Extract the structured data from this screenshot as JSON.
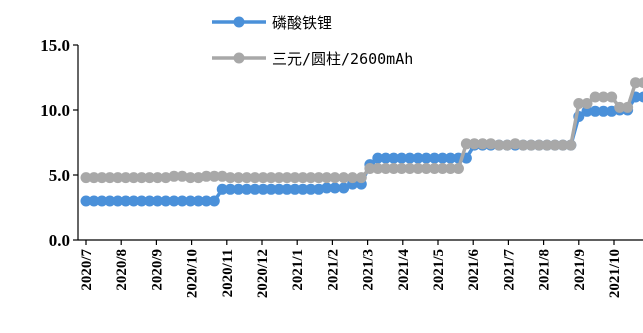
{
  "chart_data": {
    "type": "line",
    "title": "",
    "xlabel": "",
    "ylabel": "",
    "ylim": [
      0,
      15
    ],
    "yticks": [
      "0.0",
      "5.0",
      "10.0",
      "15.0"
    ],
    "xticks": [
      "2020/7",
      "2020/8",
      "2020/9",
      "2020/10",
      "2020/11",
      "2020/12",
      "2021/1",
      "2021/2",
      "2021/3",
      "2021/4",
      "2021/5",
      "2021/6",
      "2021/7",
      "2021/8",
      "2021/9",
      "2021/10"
    ],
    "legend_position": "top",
    "grid": false,
    "series": [
      {
        "name": "磷酸铁锂",
        "color": "#4a90d9",
        "x": [
          "2020-07-01",
          "2020-07-08",
          "2020-07-15",
          "2020-07-22",
          "2020-07-29",
          "2020-08-05",
          "2020-08-12",
          "2020-08-19",
          "2020-08-26",
          "2020-09-02",
          "2020-09-09",
          "2020-09-16",
          "2020-09-23",
          "2020-09-30",
          "2020-10-07",
          "2020-10-14",
          "2020-10-21",
          "2020-10-28",
          "2020-11-04",
          "2020-11-11",
          "2020-11-18",
          "2020-11-25",
          "2020-12-02",
          "2020-12-09",
          "2020-12-16",
          "2020-12-23",
          "2020-12-30",
          "2021-01-06",
          "2021-01-13",
          "2021-01-20",
          "2021-01-27",
          "2021-02-03",
          "2021-02-10",
          "2021-02-17",
          "2021-02-24",
          "2021-03-03",
          "2021-03-10",
          "2021-03-17",
          "2021-03-24",
          "2021-03-31",
          "2021-04-07",
          "2021-04-14",
          "2021-04-21",
          "2021-04-28",
          "2021-05-05",
          "2021-05-12",
          "2021-05-19",
          "2021-05-26",
          "2021-06-02",
          "2021-06-09",
          "2021-06-16",
          "2021-06-23",
          "2021-06-30",
          "2021-07-07",
          "2021-07-14",
          "2021-07-21",
          "2021-07-28",
          "2021-08-04",
          "2021-08-11",
          "2021-08-18",
          "2021-08-25",
          "2021-09-01",
          "2021-09-08",
          "2021-09-15",
          "2021-09-22",
          "2021-09-29",
          "2021-10-06",
          "2021-10-13",
          "2021-10-20",
          "2021-10-27"
        ],
        "values": [
          3.0,
          3.0,
          3.0,
          3.0,
          3.0,
          3.0,
          3.0,
          3.0,
          3.0,
          3.0,
          3.0,
          3.0,
          3.0,
          3.0,
          3.0,
          3.0,
          3.0,
          3.9,
          3.9,
          3.9,
          3.9,
          3.9,
          3.9,
          3.9,
          3.9,
          3.9,
          3.9,
          3.9,
          3.9,
          3.9,
          4.0,
          4.0,
          4.0,
          4.3,
          4.3,
          5.8,
          6.3,
          6.3,
          6.3,
          6.3,
          6.3,
          6.3,
          6.3,
          6.3,
          6.3,
          6.3,
          6.3,
          6.3,
          7.3,
          7.3,
          7.3,
          7.3,
          7.3,
          7.3,
          7.3,
          7.3,
          7.3,
          7.3,
          7.3,
          7.3,
          7.3,
          9.5,
          9.9,
          9.9,
          9.9,
          9.9,
          10.0,
          10.0,
          11.0,
          11.0
        ]
      },
      {
        "name": "三元/圆柱/2600mAh",
        "color": "#a8a8a8",
        "x": [
          "2020-07-01",
          "2020-07-08",
          "2020-07-15",
          "2020-07-22",
          "2020-07-29",
          "2020-08-05",
          "2020-08-12",
          "2020-08-19",
          "2020-08-26",
          "2020-09-02",
          "2020-09-09",
          "2020-09-16",
          "2020-09-23",
          "2020-09-30",
          "2020-10-07",
          "2020-10-14",
          "2020-10-21",
          "2020-10-28",
          "2020-11-04",
          "2020-11-11",
          "2020-11-18",
          "2020-11-25",
          "2020-12-02",
          "2020-12-09",
          "2020-12-16",
          "2020-12-23",
          "2020-12-30",
          "2021-01-06",
          "2021-01-13",
          "2021-01-20",
          "2021-01-27",
          "2021-02-03",
          "2021-02-10",
          "2021-02-17",
          "2021-02-24",
          "2021-03-03",
          "2021-03-10",
          "2021-03-17",
          "2021-03-24",
          "2021-03-31",
          "2021-04-07",
          "2021-04-14",
          "2021-04-21",
          "2021-04-28",
          "2021-05-05",
          "2021-05-12",
          "2021-05-19",
          "2021-05-26",
          "2021-06-02",
          "2021-06-09",
          "2021-06-16",
          "2021-06-23",
          "2021-06-30",
          "2021-07-07",
          "2021-07-14",
          "2021-07-21",
          "2021-07-28",
          "2021-08-04",
          "2021-08-11",
          "2021-08-18",
          "2021-08-25",
          "2021-09-01",
          "2021-09-08",
          "2021-09-15",
          "2021-09-22",
          "2021-09-29",
          "2021-10-06",
          "2021-10-13",
          "2021-10-20",
          "2021-10-27"
        ],
        "values": [
          4.8,
          4.8,
          4.8,
          4.8,
          4.8,
          4.8,
          4.8,
          4.8,
          4.8,
          4.8,
          4.8,
          4.9,
          4.9,
          4.8,
          4.8,
          4.9,
          4.9,
          4.9,
          4.8,
          4.8,
          4.8,
          4.8,
          4.8,
          4.8,
          4.8,
          4.8,
          4.8,
          4.8,
          4.8,
          4.8,
          4.8,
          4.8,
          4.8,
          4.8,
          4.8,
          5.5,
          5.5,
          5.5,
          5.5,
          5.5,
          5.5,
          5.5,
          5.5,
          5.5,
          5.5,
          5.5,
          5.5,
          7.4,
          7.4,
          7.4,
          7.4,
          7.3,
          7.3,
          7.4,
          7.3,
          7.3,
          7.3,
          7.3,
          7.3,
          7.3,
          7.3,
          10.5,
          10.5,
          11.0,
          11.0,
          11.0,
          10.2,
          10.2,
          12.1,
          12.1
        ]
      }
    ]
  }
}
